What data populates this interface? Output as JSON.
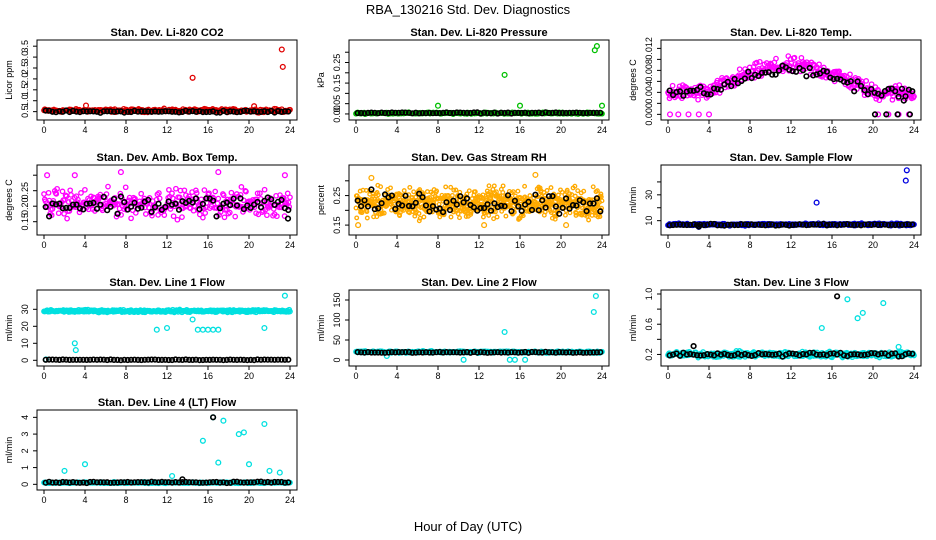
{
  "figure": {
    "title": "RBA_130216  Std. Dev. Diagnostics",
    "xlabel": "Hour of Day (UTC)"
  },
  "chart_data": [
    {
      "id": "co2",
      "type": "scatter",
      "title": "Stan. Dev. Li-820 CO2",
      "ylabel": "Licor ppm",
      "xlim": [
        0,
        24
      ],
      "ylim": [
        0.3,
        3.6
      ],
      "xticks": [
        0,
        4,
        8,
        12,
        16,
        20,
        24
      ],
      "yticks": [
        0.5,
        1.0,
        1.5,
        2.0,
        2.5,
        3.0,
        3.5
      ],
      "ytick_labels": [
        "0.5",
        "1.0",
        "1.5",
        "2.0",
        "2.5",
        "3.0",
        "3.5"
      ],
      "color": "#e00000",
      "base": 0.55,
      "spread": 0.06,
      "n": 300,
      "mean_base": 0.5,
      "mean_spread": 0.04,
      "outliers": [
        [
          14.5,
          2.05
        ],
        [
          23.2,
          3.35
        ],
        [
          23.3,
          2.55
        ],
        [
          4.1,
          0.78
        ],
        [
          20.5,
          0.75
        ]
      ],
      "mean_outliers": []
    },
    {
      "id": "pressure",
      "type": "scatter",
      "title": "Stan. Dev. Li-820 Pressure",
      "ylabel": "kPa",
      "xlim": [
        0,
        24
      ],
      "ylim": [
        -0.01,
        0.34
      ],
      "xticks": [
        0,
        4,
        8,
        12,
        16,
        20,
        24
      ],
      "yticks": [
        0.0,
        0.05,
        0.1,
        0.15,
        0.2,
        0.25,
        0.3
      ],
      "ytick_labels": [
        "0.00",
        "0.05",
        "",
        "0.15",
        "",
        "0.25",
        ""
      ],
      "color": "#00c000",
      "base": 0.004,
      "spread": 0.003,
      "n": 300,
      "mean_base": 0.005,
      "mean_spread": 0.002,
      "outliers": [
        [
          8.0,
          0.04
        ],
        [
          14.5,
          0.19
        ],
        [
          16.0,
          0.04
        ],
        [
          23.3,
          0.31
        ],
        [
          23.5,
          0.33
        ],
        [
          24.0,
          0.04
        ]
      ],
      "mean_outliers": []
    },
    {
      "id": "temp",
      "type": "scatter",
      "title": "Stan. Dev. Li-820 Temp.",
      "ylabel": "degrees C",
      "xlim": [
        0,
        24
      ],
      "ylim": [
        -0.0003,
        0.0128
      ],
      "xticks": [
        0,
        4,
        8,
        12,
        16,
        20,
        24
      ],
      "yticks": [
        0.0,
        0.002,
        0.004,
        0.006,
        0.008,
        0.01,
        0.012
      ],
      "ytick_labels": [
        "0.000",
        "",
        "0.004",
        "",
        "0.008",
        "",
        "0.012"
      ],
      "color": "#ff00ff",
      "profile": "dome",
      "base": 0.004,
      "amp": 0.0048,
      "spread": 0.0012,
      "n": 320,
      "mean_base": 0.004,
      "mean_amp": 0.004,
      "mean_spread": 0.0008,
      "outliers": [
        [
          0.2,
          0.0
        ],
        [
          1.0,
          0.0
        ],
        [
          2.0,
          0.0
        ],
        [
          3.0,
          0.0
        ],
        [
          4.0,
          0.0
        ],
        [
          20.5,
          0.0
        ],
        [
          21.5,
          0.0
        ],
        [
          22.5,
          0.0
        ],
        [
          23.5,
          0.0
        ]
      ],
      "mean_outliers": [
        [
          20.2,
          0.0
        ],
        [
          21.3,
          0.0
        ],
        [
          22.4,
          0.0
        ],
        [
          23.6,
          0.0
        ],
        [
          23.0,
          0.0025
        ]
      ]
    },
    {
      "id": "ambbox",
      "type": "scatter",
      "title": "Stan. Dev. Amb. Box Temp.",
      "ylabel": "degrees C",
      "xlim": [
        0,
        24
      ],
      "ylim": [
        0.12,
        0.32
      ],
      "xticks": [
        0,
        4,
        8,
        12,
        16,
        20,
        24
      ],
      "yticks": [
        0.15,
        0.2,
        0.25,
        0.3
      ],
      "ytick_labels": [
        "0.15",
        "0.20",
        "0.25",
        ""
      ],
      "color": "#ff00ff",
      "base": 0.21,
      "spread": 0.035,
      "n": 320,
      "mean_base": 0.205,
      "mean_spread": 0.025,
      "outliers": [
        [
          0.3,
          0.3
        ],
        [
          3.0,
          0.3
        ],
        [
          7.5,
          0.31
        ],
        [
          17.0,
          0.31
        ],
        [
          23.5,
          0.3
        ]
      ],
      "mean_outliers": [
        [
          23.8,
          0.16
        ]
      ]
    },
    {
      "id": "gasrh",
      "type": "scatter",
      "title": "Stan. Dev. Gas Stream RH",
      "ylabel": "percent",
      "xlim": [
        0,
        24
      ],
      "ylim": [
        0.13,
        0.34
      ],
      "xticks": [
        0,
        4,
        8,
        12,
        16,
        20,
        24
      ],
      "yticks": [
        0.15,
        0.2,
        0.25,
        0.3
      ],
      "ytick_labels": [
        "0.15",
        "",
        "0.25",
        ""
      ],
      "color": "#ffaa00",
      "dense": true,
      "base": 0.225,
      "spread": 0.04,
      "n": 700,
      "mean_base": 0.225,
      "mean_spread": 0.03,
      "outliers": [
        [
          0.2,
          0.15
        ],
        [
          1.5,
          0.31
        ],
        [
          12.5,
          0.15
        ],
        [
          17.5,
          0.32
        ],
        [
          20.5,
          0.15
        ]
      ],
      "mean_outliers": []
    },
    {
      "id": "sampleflow",
      "type": "scatter",
      "title": "Stan. Dev. Sample Flow",
      "ylabel": "ml/min",
      "xlim": [
        0,
        24
      ],
      "ylim": [
        2,
        50
      ],
      "xticks": [
        0,
        4,
        8,
        12,
        16,
        20,
        24
      ],
      "yticks": [
        10,
        20,
        30,
        40
      ],
      "ytick_labels": [
        "10",
        "",
        "30",
        ""
      ],
      "color": "#0000e0",
      "base": 7,
      "spread": 0.7,
      "n": 320,
      "mean_base": 6.8,
      "mean_spread": 0.5,
      "outliers": [
        [
          14.5,
          24
        ],
        [
          23.2,
          41
        ],
        [
          23.3,
          49
        ],
        [
          3.0,
          5.2
        ]
      ],
      "mean_outliers": [
        [
          3.0,
          5.5
        ],
        [
          15.5,
          6.3
        ]
      ]
    },
    {
      "id": "line1",
      "type": "scatter",
      "title": "Stan. Dev. Line 1 Flow",
      "ylabel": "ml/min",
      "xlim": [
        0,
        24
      ],
      "ylim": [
        -1,
        39
      ],
      "xticks": [
        0,
        4,
        8,
        12,
        16,
        20,
        24
      ],
      "yticks": [
        0,
        10,
        20,
        30
      ],
      "ytick_labels": [
        "0",
        "10",
        "20",
        "30"
      ],
      "color": "#00e0e0",
      "base": 29,
      "spread": 0.6,
      "n": 320,
      "mean_base": 0.3,
      "mean_spread": 0.15,
      "outliers": [
        [
          0.2,
          0.5
        ],
        [
          3.0,
          10
        ],
        [
          3.1,
          6
        ],
        [
          11.0,
          18
        ],
        [
          12.0,
          19
        ],
        [
          14.5,
          24
        ],
        [
          15.0,
          18
        ],
        [
          15.5,
          18
        ],
        [
          16.0,
          18
        ],
        [
          16.5,
          18
        ],
        [
          17.0,
          18
        ],
        [
          21.5,
          19
        ],
        [
          23.5,
          38
        ]
      ],
      "mean_outliers": []
    },
    {
      "id": "line2",
      "type": "scatter",
      "title": "Stan. Dev. Line 2 Flow",
      "ylabel": "ml/min",
      "xlim": [
        0,
        24
      ],
      "ylim": [
        -5,
        165
      ],
      "xticks": [
        0,
        4,
        8,
        12,
        16,
        20,
        24
      ],
      "yticks": [
        0,
        50,
        100,
        150
      ],
      "ytick_labels": [
        "0",
        "50",
        "100",
        "150"
      ],
      "color": "#00e0e0",
      "base": 20,
      "spread": 2,
      "n": 320,
      "mean_base": 19,
      "mean_spread": 1,
      "outliers": [
        [
          3.0,
          10
        ],
        [
          10.5,
          0.5
        ],
        [
          14.5,
          70
        ],
        [
          15.0,
          0.5
        ],
        [
          15.5,
          0.5
        ],
        [
          16.5,
          0.5
        ],
        [
          23.2,
          120
        ],
        [
          23.4,
          160
        ]
      ],
      "mean_outliers": []
    },
    {
      "id": "line3",
      "type": "scatter",
      "title": "Stan. Dev. Line 3 Flow",
      "ylabel": "ml/min",
      "xlim": [
        0,
        24
      ],
      "ylim": [
        0.1,
        1.0
      ],
      "xticks": [
        0,
        4,
        8,
        12,
        16,
        20,
        24
      ],
      "yticks": [
        0.2,
        0.4,
        0.6,
        0.8,
        1.0
      ],
      "ytick_labels": [
        "0.2",
        "",
        "0.6",
        "",
        "1.0"
      ],
      "color": "#00e0e0",
      "base": 0.2,
      "spread": 0.03,
      "n": 400,
      "mean_base": 0.2,
      "mean_spread": 0.02,
      "outliers": [
        [
          15.0,
          0.55
        ],
        [
          17.5,
          0.93
        ],
        [
          18.5,
          0.68
        ],
        [
          19.0,
          0.75
        ],
        [
          21.0,
          0.88
        ],
        [
          22.5,
          0.3
        ]
      ],
      "mean_outliers": [
        [
          2.5,
          0.31
        ],
        [
          16.5,
          0.97
        ]
      ]
    },
    {
      "id": "line4",
      "type": "scatter",
      "title": "Stan. Dev. Line 4 (LT) Flow",
      "ylabel": "ml/min",
      "xlim": [
        0,
        24
      ],
      "ylim": [
        -0.1,
        4.2
      ],
      "xticks": [
        0,
        4,
        8,
        12,
        16,
        20,
        24
      ],
      "yticks": [
        0,
        1,
        2,
        3,
        4
      ],
      "ytick_labels": [
        "0",
        "1",
        "2",
        "3",
        "4"
      ],
      "color": "#00e0e0",
      "base": 0.1,
      "spread": 0.03,
      "n": 320,
      "mean_base": 0.12,
      "mean_spread": 0.03,
      "outliers": [
        [
          2.0,
          0.8
        ],
        [
          4.0,
          1.2
        ],
        [
          12.5,
          0.5
        ],
        [
          15.5,
          2.6
        ],
        [
          16.5,
          4.0
        ],
        [
          17.0,
          1.3
        ],
        [
          17.5,
          3.8
        ],
        [
          19.0,
          3.0
        ],
        [
          19.5,
          3.1
        ],
        [
          20.0,
          1.2
        ],
        [
          21.5,
          3.6
        ],
        [
          22.0,
          0.8
        ],
        [
          23.0,
          0.7
        ]
      ],
      "mean_outliers": [
        [
          16.5,
          4.0
        ],
        [
          13.5,
          0.3
        ]
      ]
    }
  ]
}
